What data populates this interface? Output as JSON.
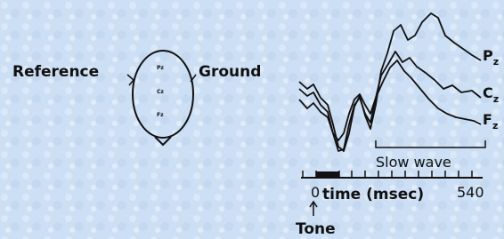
{
  "left_labels": {
    "reference": "Reference",
    "ground": "Ground"
  },
  "head_electrodes": [
    "Pz",
    "Cz",
    "Fz"
  ],
  "waveforms": [
    {
      "letter": "P",
      "sub": "z"
    },
    {
      "letter": "C",
      "sub": "z"
    },
    {
      "letter": "F",
      "sub": "z"
    }
  ],
  "annotation": "Slow wave",
  "axis": {
    "start": "0",
    "title": "time (msec)",
    "end": "540"
  },
  "stimulus": "Tone"
}
